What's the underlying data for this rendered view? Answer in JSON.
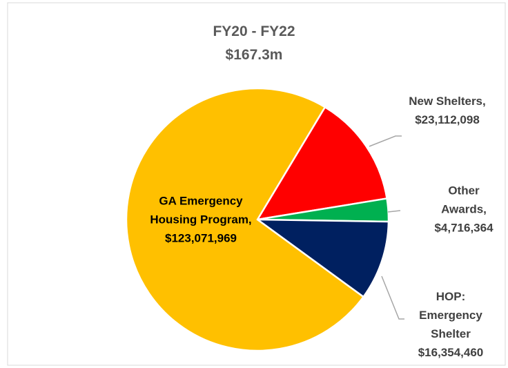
{
  "chart_data": {
    "type": "pie",
    "title": "FY20 - FY22",
    "subtitle": "$167.3m",
    "categories": [
      "GA Emergency Housing Program,",
      "New Shelters,",
      "Other Awards,",
      "HOP: Emergency Shelter"
    ],
    "values": [
      123071969,
      23112098,
      4716364,
      16354460
    ],
    "value_labels": [
      "$123,071,969",
      "$23,112,098",
      "$4,716,364",
      "$16,354,460"
    ],
    "colors": [
      "#ffc000",
      "#ff0000",
      "#00b050",
      "#002060"
    ]
  }
}
